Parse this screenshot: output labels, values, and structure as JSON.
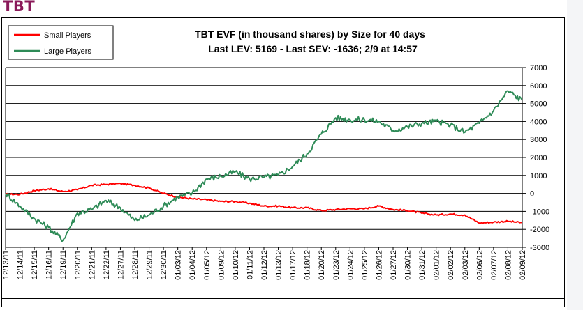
{
  "page": {
    "heading": "TBT"
  },
  "chart_data": {
    "type": "line",
    "title": "TBT EVF (in thousand shares) by Size for 40 days",
    "subtitle": "Last LEV: 5169 - Last SEV: -1636; 2/9 at 14:57",
    "ylim": [
      -3000,
      7000
    ],
    "y_ticks": [
      7000,
      6000,
      5000,
      4000,
      3000,
      2000,
      1000,
      0,
      -1000,
      -2000,
      -3000
    ],
    "y_axis_side": "right",
    "grid": "horizontal",
    "legend_position": "top-left",
    "x": [
      "12/13/11",
      "12/14/11",
      "12/15/11",
      "12/16/11",
      "12/19/11",
      "12/20/11",
      "12/21/11",
      "12/22/11",
      "12/27/11",
      "12/28/11",
      "12/29/11",
      "12/30/11",
      "01/03/12",
      "01/04/12",
      "01/05/12",
      "01/09/12",
      "01/10/12",
      "01/11/12",
      "01/12/12",
      "01/13/12",
      "01/17/12",
      "01/18/12",
      "01/20/12",
      "01/23/12",
      "01/24/12",
      "01/25/12",
      "01/26/12",
      "01/27/12",
      "01/30/12",
      "01/31/12",
      "02/01/12",
      "02/02/12",
      "02/03/12",
      "02/06/12",
      "02/07/12",
      "02/08/12",
      "02/09/12"
    ],
    "series": [
      {
        "name": "Small Players",
        "color": "#ff0000",
        "values": [
          -50,
          -50,
          150,
          250,
          100,
          200,
          450,
          500,
          550,
          450,
          300,
          0,
          -200,
          -300,
          -350,
          -450,
          -450,
          -550,
          -700,
          -700,
          -800,
          -800,
          -950,
          -900,
          -850,
          -850,
          -700,
          -900,
          -950,
          -1100,
          -1200,
          -1150,
          -1200,
          -1650,
          -1600,
          -1550,
          -1636
        ]
      },
      {
        "name": "Large Players",
        "color": "#2e8b57",
        "values": [
          0,
          -700,
          -1400,
          -1900,
          -2600,
          -1100,
          -900,
          -400,
          -800,
          -1500,
          -1200,
          -700,
          -200,
          0,
          800,
          950,
          1200,
          800,
          900,
          1000,
          1500,
          2200,
          3300,
          4200,
          4100,
          4100,
          4000,
          3500,
          3700,
          3900,
          4000,
          3800,
          3400,
          3900,
          4600,
          5700,
          5169
        ]
      }
    ]
  }
}
